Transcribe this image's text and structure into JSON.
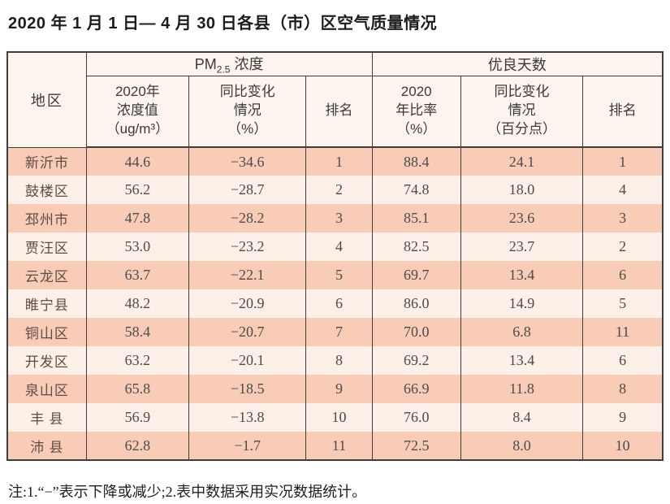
{
  "page": {
    "title": "2020 年 1 月 1 日— 4 月 30 日各县（市）区空气质量情况",
    "footnote": "注:1.“−”表示下降或减少;2.表中数据采用实况数据统计。"
  },
  "table": {
    "corner_header": "地区",
    "group_pm": {
      "prefix": "PM",
      "sub": "2.5",
      "suffix": " 浓度"
    },
    "group_good": "优良天数",
    "subheaders": [
      "2020年\n浓度值\n（ug/m³）",
      "同比变化\n情况\n（%）",
      "排名",
      "2020\n年比率\n（%）",
      "同比变化\n情况\n（百分点）",
      "排名"
    ],
    "rows": [
      {
        "region": "新沂市",
        "pm_value": "44.6",
        "pm_change": "−34.6",
        "pm_rank": "1",
        "good_ratio": "88.4",
        "good_change": "24.1",
        "good_rank": "1"
      },
      {
        "region": "鼓楼区",
        "pm_value": "56.2",
        "pm_change": "−28.7",
        "pm_rank": "2",
        "good_ratio": "74.8",
        "good_change": "18.0",
        "good_rank": "4"
      },
      {
        "region": "邳州市",
        "pm_value": "47.8",
        "pm_change": "−28.2",
        "pm_rank": "3",
        "good_ratio": "85.1",
        "good_change": "23.6",
        "good_rank": "3"
      },
      {
        "region": "贾汪区",
        "pm_value": "53.0",
        "pm_change": "−23.2",
        "pm_rank": "4",
        "good_ratio": "82.5",
        "good_change": "23.7",
        "good_rank": "2"
      },
      {
        "region": "云龙区",
        "pm_value": "63.7",
        "pm_change": "−22.1",
        "pm_rank": "5",
        "good_ratio": "69.7",
        "good_change": "13.4",
        "good_rank": "6"
      },
      {
        "region": "睢宁县",
        "pm_value": "48.2",
        "pm_change": "−20.9",
        "pm_rank": "6",
        "good_ratio": "86.0",
        "good_change": "14.9",
        "good_rank": "5"
      },
      {
        "region": "铜山区",
        "pm_value": "58.4",
        "pm_change": "−20.7",
        "pm_rank": "7",
        "good_ratio": "70.0",
        "good_change": "6.8",
        "good_rank": "11"
      },
      {
        "region": "开发区",
        "pm_value": "63.2",
        "pm_change": "−20.1",
        "pm_rank": "8",
        "good_ratio": "69.2",
        "good_change": "13.4",
        "good_rank": "6"
      },
      {
        "region": "泉山区",
        "pm_value": "65.8",
        "pm_change": "−18.5",
        "pm_rank": "9",
        "good_ratio": "66.9",
        "good_change": "11.8",
        "good_rank": "8"
      },
      {
        "region": "丰 县",
        "pm_value": "56.9",
        "pm_change": "−13.8",
        "pm_rank": "10",
        "good_ratio": "76.0",
        "good_change": "8.4",
        "good_rank": "9"
      },
      {
        "region": "沛 县",
        "pm_value": "62.8",
        "pm_change": "−1.7",
        "pm_rank": "11",
        "good_ratio": "72.5",
        "good_change": "8.0",
        "good_rank": "10"
      }
    ],
    "colors": {
      "row_odd": "#f8ccb6",
      "row_even": "#fcf0e8",
      "header_bg": "#fdf4ee",
      "border": "#3d3d3d"
    }
  }
}
